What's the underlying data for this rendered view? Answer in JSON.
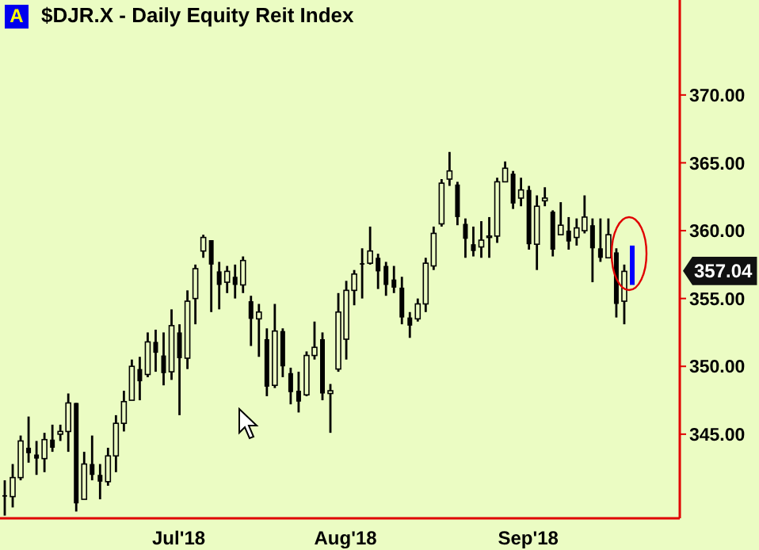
{
  "chart_data": {
    "type": "candlestick",
    "title": "$DJR.X - Daily  Equity Reit Index",
    "categories": [
      null,
      null,
      null,
      null,
      null,
      null,
      null,
      null,
      null,
      null,
      null,
      null,
      null,
      null,
      null,
      null,
      null,
      null,
      null,
      null,
      null,
      null,
      "Jul'18",
      null,
      null,
      null,
      null,
      null,
      null,
      null,
      null,
      null,
      null,
      null,
      null,
      null,
      null,
      null,
      null,
      null,
      null,
      null,
      null,
      "Aug'18",
      null,
      null,
      null,
      null,
      null,
      null,
      null,
      null,
      null,
      null,
      null,
      null,
      null,
      null,
      null,
      null,
      null,
      null,
      null,
      null,
      null,
      null,
      "Sep'18",
      null,
      null,
      null,
      null,
      null,
      null,
      null,
      null,
      null,
      null,
      null,
      null,
      null
    ],
    "ohlc": [
      [
        340.5,
        341.6,
        339.0,
        340.4
      ],
      [
        340.4,
        342.8,
        339.6,
        341.8
      ],
      [
        341.8,
        344.9,
        341.6,
        344.5
      ],
      [
        344.0,
        346.3,
        342.9,
        343.6
      ],
      [
        343.5,
        344.5,
        342.0,
        343.2
      ],
      [
        343.2,
        345.1,
        342.2,
        344.6
      ],
      [
        344.6,
        345.7,
        343.7,
        344.0
      ],
      [
        345.0,
        345.7,
        344.5,
        345.2
      ],
      [
        345.2,
        348.0,
        343.7,
        347.3
      ],
      [
        347.3,
        347.3,
        339.3,
        339.9
      ],
      [
        340.2,
        343.7,
        340.2,
        342.8
      ],
      [
        342.8,
        344.9,
        341.6,
        342.0
      ],
      [
        342.0,
        342.8,
        340.2,
        341.5
      ],
      [
        341.5,
        344.0,
        341.2,
        343.4
      ],
      [
        343.4,
        346.4,
        342.2,
        345.8
      ],
      [
        345.8,
        348.2,
        345.2,
        347.4
      ],
      [
        347.5,
        350.5,
        347.5,
        350.0
      ],
      [
        349.8,
        350.7,
        347.5,
        348.9
      ],
      [
        349.4,
        352.5,
        349.2,
        351.8
      ],
      [
        351.8,
        352.7,
        349.6,
        351.0
      ],
      [
        350.8,
        352.5,
        348.6,
        349.5
      ],
      [
        349.6,
        354.2,
        349.0,
        353.0
      ],
      [
        352.5,
        353.1,
        346.4,
        350.6
      ],
      [
        350.6,
        355.6,
        349.8,
        354.8
      ],
      [
        355.0,
        357.5,
        353.1,
        357.2
      ],
      [
        358.5,
        359.7,
        358.0,
        359.5
      ],
      [
        359.3,
        359.3,
        354.0,
        357.5
      ],
      [
        357.0,
        357.7,
        354.2,
        356.0
      ],
      [
        356.2,
        357.4,
        355.4,
        357.0
      ],
      [
        356.6,
        357.5,
        355.0,
        356.0
      ],
      [
        356.0,
        358.1,
        355.4,
        357.8
      ],
      [
        354.8,
        355.2,
        351.5,
        353.5
      ],
      [
        353.5,
        354.6,
        350.7,
        354.0
      ],
      [
        352.0,
        352.8,
        347.8,
        348.5
      ],
      [
        348.6,
        354.6,
        348.4,
        352.6
      ],
      [
        352.6,
        352.8,
        349.2,
        350.0
      ],
      [
        349.5,
        349.9,
        347.2,
        348.1
      ],
      [
        348.2,
        349.6,
        346.6,
        347.4
      ],
      [
        347.9,
        351.1,
        347.8,
        350.8
      ],
      [
        350.8,
        353.3,
        350.5,
        351.4
      ],
      [
        352.0,
        352.5,
        347.5,
        348.0
      ],
      [
        348.0,
        348.7,
        345.1,
        348.2
      ],
      [
        349.8,
        355.4,
        349.6,
        354.0
      ],
      [
        352.0,
        356.3,
        350.5,
        355.6
      ],
      [
        355.6,
        357.1,
        354.5,
        356.8
      ],
      [
        357.6,
        358.7,
        355.0,
        357.5
      ],
      [
        357.6,
        360.3,
        357.5,
        358.5
      ],
      [
        358.0,
        358.3,
        355.7,
        357.0
      ],
      [
        357.4,
        357.7,
        355.2,
        356.0
      ],
      [
        356.4,
        357.4,
        355.4,
        355.8
      ],
      [
        355.8,
        356.6,
        353.1,
        353.6
      ],
      [
        353.6,
        354.0,
        352.1,
        353.0
      ],
      [
        353.5,
        355.0,
        353.3,
        354.6
      ],
      [
        354.6,
        358.0,
        354.0,
        357.6
      ],
      [
        357.4,
        360.3,
        357.1,
        359.8
      ],
      [
        360.5,
        363.8,
        360.3,
        363.5
      ],
      [
        363.8,
        365.8,
        363.3,
        364.4
      ],
      [
        363.4,
        363.6,
        360.4,
        361.0
      ],
      [
        360.5,
        360.9,
        358.0,
        359.4
      ],
      [
        359.0,
        360.3,
        358.1,
        358.5
      ],
      [
        358.8,
        360.7,
        358.0,
        359.3
      ],
      [
        359.5,
        361.0,
        358.0,
        359.6
      ],
      [
        359.6,
        363.9,
        359.1,
        363.6
      ],
      [
        363.6,
        365.1,
        363.6,
        364.6
      ],
      [
        364.2,
        364.4,
        361.6,
        362.0
      ],
      [
        362.4,
        363.9,
        361.8,
        363.0
      ],
      [
        363.0,
        363.3,
        358.6,
        359.0
      ],
      [
        359.0,
        362.6,
        357.1,
        361.8
      ],
      [
        362.2,
        363.2,
        361.8,
        362.4
      ],
      [
        361.4,
        361.5,
        358.1,
        358.6
      ],
      [
        359.7,
        362.1,
        359.7,
        360.4
      ],
      [
        360.0,
        361.0,
        358.6,
        359.2
      ],
      [
        359.5,
        360.9,
        358.9,
        360.2
      ],
      [
        360.0,
        362.6,
        359.8,
        361.0
      ],
      [
        360.4,
        360.9,
        356.2,
        358.7
      ],
      [
        358.7,
        360.9,
        357.7,
        358.0
      ],
      [
        358.0,
        360.9,
        358.0,
        359.7
      ],
      [
        358.4,
        358.7,
        353.6,
        354.6
      ],
      [
        354.8,
        357.5,
        353.1,
        357.0
      ],
      [
        357.7,
        358.9,
        356.0,
        357.04
      ]
    ],
    "colors": [
      "#000000",
      "#000000",
      "#000000",
      "#000000",
      "#000000",
      "#000000",
      "#000000",
      "#000000",
      "#000000",
      "#000000",
      "#000000",
      "#000000",
      "#000000",
      "#000000",
      "#000000",
      "#000000",
      "#000000",
      "#000000",
      "#000000",
      "#000000",
      "#000000",
      "#000000",
      "#000000",
      "#000000",
      "#000000",
      "#000000",
      "#000000",
      "#000000",
      "#000000",
      "#000000",
      "#000000",
      "#000000",
      "#000000",
      "#000000",
      "#000000",
      "#000000",
      "#000000",
      "#000000",
      "#000000",
      "#000000",
      "#000000",
      "#000000",
      "#000000",
      "#000000",
      "#000000",
      "#000000",
      "#000000",
      "#000000",
      "#000000",
      "#000000",
      "#000000",
      "#000000",
      "#000000",
      "#000000",
      "#000000",
      "#000000",
      "#000000",
      "#000000",
      "#000000",
      "#000000",
      "#000000",
      "#000000",
      "#000000",
      "#000000",
      "#000000",
      "#000000",
      "#000000",
      "#000000",
      "#000000",
      "#000000",
      "#000000",
      "#000000",
      "#000000",
      "#000000",
      "#000000",
      "#000000",
      "#000000",
      "#000000",
      "#000000",
      "#0000ff"
    ],
    "ylim": [
      338.8,
      377
    ],
    "yticks": [
      {
        "value": 345,
        "label": "345.00"
      },
      {
        "value": 350,
        "label": "350.00"
      },
      {
        "value": 355,
        "label": "355.00"
      },
      {
        "value": 360,
        "label": "360.00"
      },
      {
        "value": 365,
        "label": "365.00"
      },
      {
        "value": 370,
        "label": "370.00"
      }
    ],
    "annotations": [
      "A",
      "357.04"
    ],
    "grid": false,
    "legend": false
  }
}
